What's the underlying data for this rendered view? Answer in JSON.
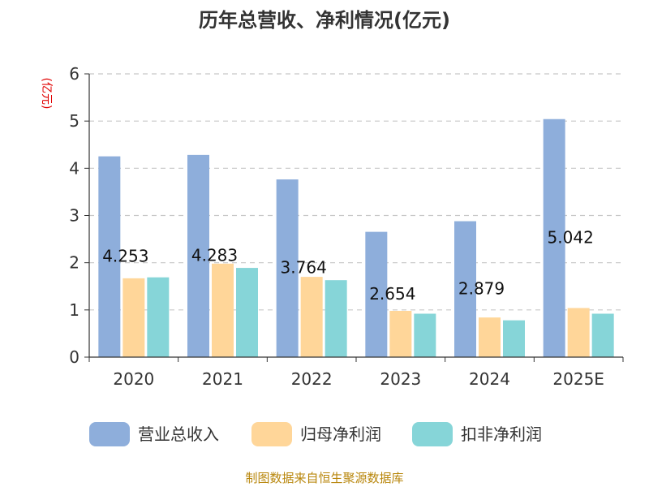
{
  "chart_data": {
    "type": "bar",
    "title": "历年总营收、净利情况(亿元)",
    "unit_label": "(亿元)",
    "categories": [
      "2020",
      "2021",
      "2022",
      "2023",
      "2024",
      "2025E"
    ],
    "ylim": [
      0,
      6
    ],
    "yticks": [
      "0",
      "1",
      "2",
      "3",
      "4",
      "5",
      "6"
    ],
    "grid": true,
    "legend_position": "bottom",
    "series": [
      {
        "name": "营业总收入",
        "color": "#8eaedb",
        "values": [
          4.253,
          4.283,
          3.764,
          2.654,
          2.879,
          5.042
        ],
        "labels": [
          "4.253",
          "4.283",
          "3.764",
          "2.654",
          "2.879",
          "5.042"
        ]
      },
      {
        "name": "归母净利润",
        "color": "#ffd699",
        "values": [
          1.67,
          1.98,
          1.7,
          0.98,
          0.84,
          1.04
        ]
      },
      {
        "name": "扣非净利润",
        "color": "#86d5d8",
        "values": [
          1.69,
          1.89,
          1.63,
          0.92,
          0.78,
          0.92
        ]
      }
    ],
    "source": "制图数据来自恒生聚源数据库"
  }
}
